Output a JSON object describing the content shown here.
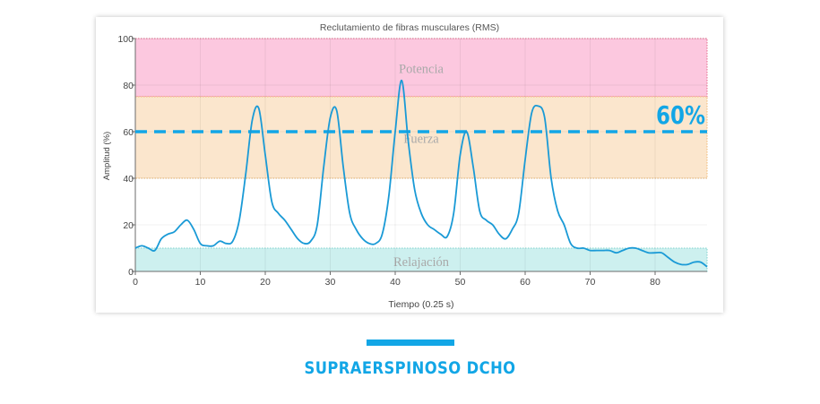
{
  "chart_data": {
    "type": "line",
    "title": "Reclutamiento de fibras musculares (RMS)",
    "xlabel": "Tiempo (0.25 s)",
    "ylabel": "Amplitud (%)",
    "xlim": [
      0,
      88
    ],
    "ylim": [
      0,
      100
    ],
    "xticks": [
      "0",
      "10",
      "20",
      "30",
      "40",
      "50",
      "60",
      "70",
      "80"
    ],
    "yticks": [
      "0",
      "20",
      "40",
      "60",
      "80",
      "100"
    ],
    "grid": true,
    "bands": [
      {
        "label": "Potencia",
        "from": 75,
        "to": 100,
        "color": "#fcc8df",
        "border": "#e36b8c"
      },
      {
        "label": "Fuerza",
        "from": 40,
        "to": 75,
        "color": "#fbe6cd",
        "border": "#f0b872"
      },
      {
        "label": "Relajación",
        "from": 0,
        "to": 10,
        "color": "#cdf0ef",
        "border": "#7fd1cd"
      }
    ],
    "threshold": {
      "value": 60,
      "label": "60%",
      "color": "#12a6e6"
    },
    "series": [
      {
        "color": "#1a9ad6",
        "x": [
          0,
          1,
          2,
          3,
          4,
          5,
          6,
          7,
          8,
          9,
          10,
          11,
          12,
          13,
          14,
          15,
          16,
          17,
          18,
          19,
          20,
          21,
          22,
          23,
          24,
          25,
          26,
          27,
          28,
          29,
          30,
          31,
          32,
          33,
          34,
          35,
          36,
          37,
          38,
          39,
          40,
          41,
          42,
          43,
          44,
          45,
          46,
          47,
          48,
          49,
          50,
          51,
          52,
          53,
          54,
          55,
          56,
          57,
          58,
          59,
          60,
          61,
          62,
          63,
          64,
          65,
          66,
          67,
          68,
          69,
          70,
          71,
          72,
          73,
          74,
          75,
          76,
          77,
          78,
          79,
          80,
          81,
          82,
          83,
          84,
          85,
          86,
          87,
          88
        ],
        "values": [
          10,
          11,
          10,
          9,
          14,
          16,
          17,
          20,
          22,
          18,
          12,
          11,
          11,
          13,
          12,
          13,
          22,
          42,
          65,
          70,
          50,
          30,
          25,
          22,
          18,
          14,
          12,
          13,
          20,
          45,
          66,
          69,
          45,
          25,
          18,
          14,
          12,
          12,
          16,
          32,
          60,
          82,
          56,
          35,
          25,
          20,
          18,
          16,
          15,
          25,
          50,
          60,
          45,
          26,
          22,
          20,
          16,
          14,
          18,
          25,
          48,
          68,
          71,
          66,
          40,
          26,
          20,
          12,
          10,
          10,
          9,
          9,
          9,
          9,
          8,
          9,
          10,
          10,
          9,
          8,
          8,
          8,
          6,
          4,
          3,
          3,
          4,
          4,
          2
        ]
      }
    ]
  },
  "caption": "SUPRAERSPINOSO DCHO"
}
